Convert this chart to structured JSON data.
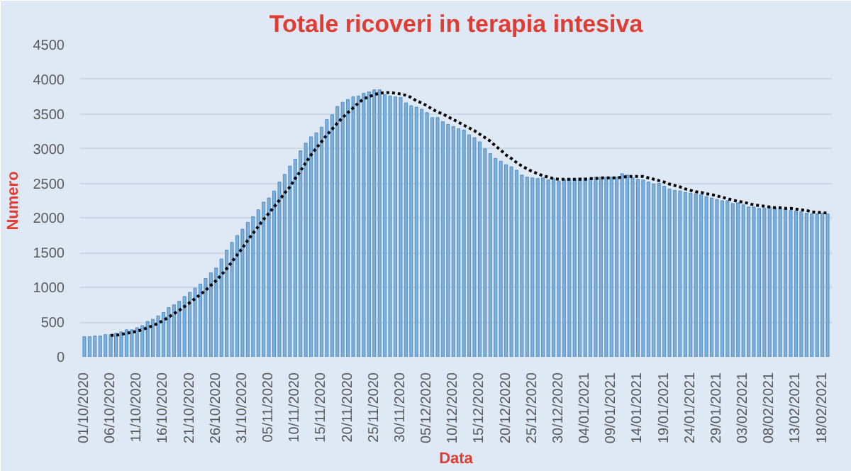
{
  "chart_data": {
    "type": "bar",
    "title": "Totale ricoveri in terapia intesiva",
    "xlabel": "Data",
    "ylabel": "Numero",
    "categories": [
      "01/10/2020",
      null,
      null,
      null,
      null,
      "06/10/2020",
      null,
      null,
      null,
      null,
      "11/10/2020",
      null,
      null,
      null,
      null,
      "16/10/2020",
      null,
      null,
      null,
      null,
      "21/10/2020",
      null,
      null,
      null,
      null,
      "26/10/2020",
      null,
      null,
      null,
      null,
      "31/10/2020",
      null,
      null,
      null,
      null,
      "05/11/2020",
      null,
      null,
      null,
      null,
      "10/11/2020",
      null,
      null,
      null,
      null,
      "15/11/2020",
      null,
      null,
      null,
      null,
      "20/11/2020",
      null,
      null,
      null,
      null,
      "25/11/2020",
      null,
      null,
      null,
      null,
      "30/11/2020",
      null,
      null,
      null,
      null,
      "05/12/2020",
      null,
      null,
      null,
      null,
      "10/12/2020",
      null,
      null,
      null,
      null,
      "15/12/2020",
      null,
      null,
      null,
      null,
      "20/12/2020",
      null,
      null,
      null,
      null,
      "25/12/2020",
      null,
      null,
      null,
      null,
      "30/12/2020",
      null,
      null,
      null,
      null,
      "04/01/2021",
      null,
      null,
      null,
      null,
      "09/01/2021",
      null,
      null,
      null,
      null,
      "14/01/2021",
      null,
      null,
      null,
      null,
      "19/01/2021",
      null,
      null,
      null,
      null,
      "24/01/2021",
      null,
      null,
      null,
      null,
      "29/01/2021",
      null,
      null,
      null,
      null,
      "03/02/2021",
      null,
      null,
      null,
      null,
      "08/02/2021",
      null,
      null,
      null,
      null,
      "13/02/2021",
      null,
      null,
      null,
      null,
      "18/02/2021",
      null
    ],
    "series": [
      {
        "color": "#7eb0dc",
        "values": [
          290,
          290,
          300,
          300,
          320,
          320,
          340,
          360,
          390,
          390,
          420,
          450,
          510,
          540,
          590,
          640,
          710,
          750,
          800,
          870,
          930,
          990,
          1050,
          1130,
          1210,
          1280,
          1410,
          1540,
          1650,
          1750,
          1840,
          1940,
          2020,
          2120,
          2230,
          2290,
          2390,
          2520,
          2630,
          2750,
          2850,
          2970,
          3080,
          3170,
          3230,
          3310,
          3420,
          3490,
          3610,
          3670,
          3710,
          3750,
          3760,
          3800,
          3820,
          3850,
          3850,
          3780,
          3760,
          3750,
          3740,
          3660,
          3620,
          3600,
          3570,
          3520,
          3450,
          3450,
          3390,
          3350,
          3320,
          3290,
          3270,
          3200,
          3160,
          3100,
          3000,
          2930,
          2860,
          2820,
          2770,
          2740,
          2690,
          2620,
          2590,
          2580,
          2570,
          2580,
          2550,
          2570,
          2530,
          2560,
          2570,
          2570,
          2580,
          2580,
          2570,
          2590,
          2590,
          2590,
          2590,
          2590,
          2640,
          2620,
          2580,
          2560,
          2550,
          2520,
          2490,
          2500,
          2460,
          2420,
          2400,
          2390,
          2370,
          2360,
          2350,
          2340,
          2310,
          2290,
          2270,
          2250,
          2250,
          2210,
          2220,
          2190,
          2160,
          2160,
          2140,
          2140,
          2160,
          2150,
          2140,
          2130,
          2110,
          2100,
          2090,
          2070,
          2060,
          2060,
          2070,
          2060
        ]
      },
      {
        "type": "line",
        "color": "#000000",
        "line_style": "dotted",
        "values": [
          null,
          null,
          null,
          null,
          null,
          310,
          310,
          320,
          340,
          350,
          370,
          391,
          420,
          450,
          484,
          525,
          572,
          622,
          669,
          724,
          781,
          840,
          897,
          960,
          1030,
          1100,
          1180,
          1270,
          1370,
          1470,
          1570,
          1680,
          1780,
          1880,
          1980,
          2070,
          2160,
          2260,
          2360,
          2450,
          2570,
          2680,
          2800,
          2910,
          3010,
          3100,
          3200,
          3280,
          3370,
          3450,
          3520,
          3590,
          3660,
          3720,
          3750,
          3780,
          3800,
          3810,
          3810,
          3800,
          3790,
          3770,
          3740,
          3690,
          3660,
          3620,
          3570,
          3530,
          3500,
          3460,
          3420,
          3380,
          3340,
          3300,
          3260,
          3210,
          3160,
          3110,
          3040,
          2980,
          2910,
          2860,
          2800,
          2750,
          2710,
          2670,
          2640,
          2610,
          2590,
          2570,
          2560,
          2560,
          2560,
          2560,
          2560,
          2560,
          2570,
          2570,
          2580,
          2580,
          2580,
          2580,
          2590,
          2600,
          2600,
          2600,
          2600,
          2580,
          2560,
          2540,
          2520,
          2490,
          2470,
          2450,
          2420,
          2400,
          2380,
          2370,
          2350,
          2340,
          2320,
          2300,
          2280,
          2260,
          2240,
          2230,
          2210,
          2190,
          2180,
          2170,
          2160,
          2150,
          2150,
          2140,
          2140,
          2130,
          2120,
          2110,
          2090,
          2080,
          2080,
          2070
        ]
      }
    ],
    "ylim": [
      0,
      4500
    ],
    "yticks": [
      0,
      500,
      1000,
      1500,
      2000,
      2500,
      3000,
      3500,
      4000,
      4500
    ],
    "grid": "y"
  }
}
